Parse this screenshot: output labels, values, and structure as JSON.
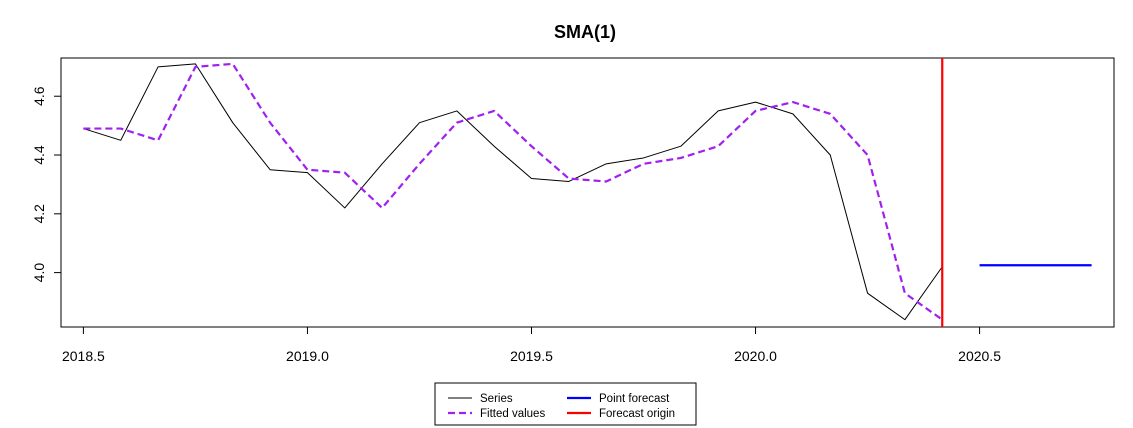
{
  "chart_data": {
    "type": "line",
    "title": "SMA(1)",
    "xlabel": "",
    "ylabel": "",
    "xlim": [
      2018.45,
      2020.8
    ],
    "ylim": [
      3.815,
      4.73
    ],
    "x_ticks": [
      2018.5,
      2019.0,
      2019.5,
      2020.0,
      2020.5
    ],
    "x_tick_labels": [
      "2018.5",
      "2019.0",
      "2019.5",
      "2020.0",
      "2020.5"
    ],
    "y_ticks": [
      4.0,
      4.2,
      4.4,
      4.6
    ],
    "y_tick_labels": [
      "4.0",
      "4.2",
      "4.4",
      "4.6"
    ],
    "grid": false,
    "legend_position": "bottom",
    "colors": {
      "series": "#000000",
      "fitted": "#A020F0",
      "point_forecast": "#0000FF",
      "forecast_origin": "#FF0000"
    },
    "series": [
      {
        "name": "Series",
        "style": "solid",
        "x": [
          2018.5,
          2018.5833,
          2018.6667,
          2018.75,
          2018.8333,
          2018.9167,
          2019.0,
          2019.0833,
          2019.1667,
          2019.25,
          2019.3333,
          2019.4167,
          2019.5,
          2019.5833,
          2019.6667,
          2019.75,
          2019.8333,
          2019.9167,
          2020.0,
          2020.0833,
          2020.1667,
          2020.25,
          2020.3333,
          2020.4167
        ],
        "y": [
          4.49,
          4.45,
          4.7,
          4.71,
          4.51,
          4.35,
          4.34,
          4.22,
          4.37,
          4.51,
          4.55,
          4.43,
          4.32,
          4.31,
          4.37,
          4.39,
          4.43,
          4.55,
          4.58,
          4.54,
          4.4,
          3.93,
          3.84,
          4.02
        ]
      },
      {
        "name": "Fitted values",
        "style": "dashed",
        "x": [
          2018.5,
          2018.5833,
          2018.6667,
          2018.75,
          2018.8333,
          2018.9167,
          2019.0,
          2019.0833,
          2019.1667,
          2019.25,
          2019.3333,
          2019.4167,
          2019.5,
          2019.5833,
          2019.6667,
          2019.75,
          2019.8333,
          2019.9167,
          2020.0,
          2020.0833,
          2020.1667,
          2020.25,
          2020.3333,
          2020.4167
        ],
        "y": [
          4.49,
          4.49,
          4.45,
          4.7,
          4.71,
          4.51,
          4.35,
          4.34,
          4.22,
          4.37,
          4.51,
          4.55,
          4.43,
          4.32,
          4.31,
          4.37,
          4.39,
          4.43,
          4.55,
          4.58,
          4.54,
          4.4,
          3.93,
          3.84
        ]
      },
      {
        "name": "Point forecast",
        "style": "solid",
        "x": [
          2020.5,
          2020.75
        ],
        "y": [
          4.025,
          4.025
        ]
      }
    ],
    "forecast_origin_x": 2020.4167,
    "legend": [
      {
        "label": "Series",
        "key": "series"
      },
      {
        "label": "Fitted values",
        "key": "fitted"
      },
      {
        "label": "Point forecast",
        "key": "point_forecast"
      },
      {
        "label": "Forecast origin",
        "key": "forecast_origin"
      }
    ]
  }
}
